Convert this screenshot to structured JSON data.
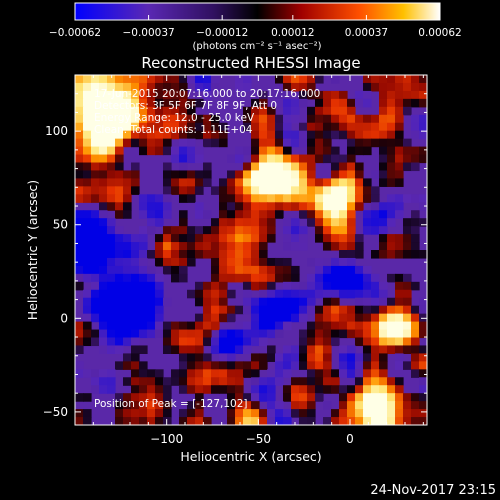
{
  "chart_data": {
    "type": "heatmap",
    "title": "Reconstructed RHESSI Image",
    "xlabel": "Heliocentric X (arcsec)",
    "ylabel": "Heliocentric Y (arcsec)",
    "xlim": [
      -150,
      42
    ],
    "ylim": [
      -57,
      130
    ],
    "x_ticks": [
      -100,
      -50,
      0
    ],
    "x_tick_labels": [
      "−100",
      "−50",
      "0"
    ],
    "y_ticks": [
      -50,
      0,
      50,
      100
    ],
    "y_tick_labels": [
      "−50",
      "0",
      "50",
      "100"
    ],
    "colorbar": {
      "range": [
        -0.00062,
        0.00062
      ],
      "ticks": [
        -0.00062,
        -0.00037,
        -0.00012,
        0.00012,
        0.00037,
        0.00062
      ],
      "tick_labels": [
        "−0.00062",
        "−0.00037",
        "−0.00012",
        "0.00012",
        "0.00037",
        "0.00062"
      ],
      "unit_label": "(photons cm⁻² s⁻¹ asec⁻²)",
      "colors": [
        "#0000ff",
        "#7a30c8",
        "#000000",
        "#cc1000",
        "#ff7a00",
        "#ffffff"
      ]
    },
    "annotations": [
      "17-Jun-2015 20:07:16.000 to 20:17:16.000",
      "Detectors: 3F 5F 6F 7F 8F 9F, Att 0",
      "Energy Range: 12.0 - 25.0 keV",
      "Clean.   Total counts: 1.11E+04"
    ],
    "peak_label": "Position of Peak = [-127,102]",
    "peak": [
      -127,
      102
    ],
    "background_color": "#5a28a8",
    "timestamp": "24-Nov-2017 23:15"
  }
}
